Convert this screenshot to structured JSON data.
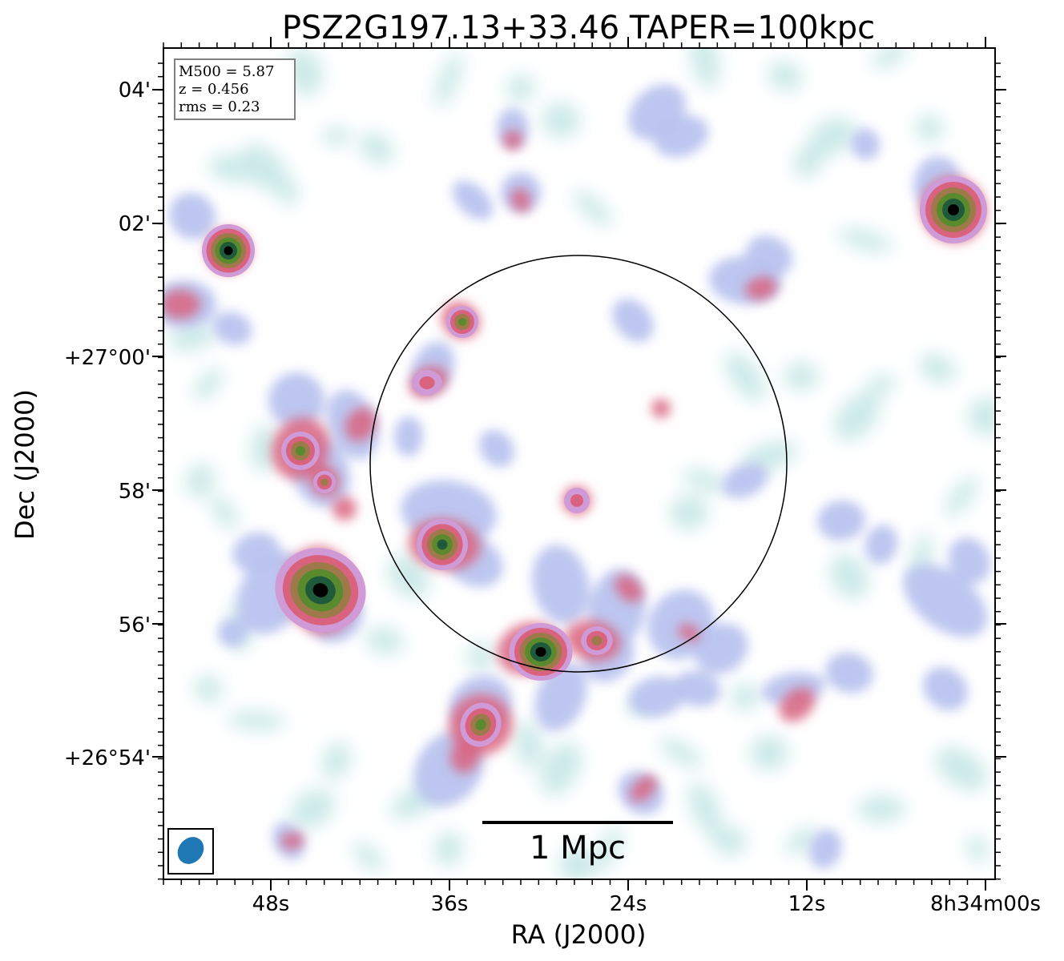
{
  "title": "PSZ2G197.13+33.46 TAPER=100kpc",
  "axes": {
    "xlabel": "RA (J2000)",
    "ylabel": "Dec (J2000)",
    "x_ticks": [
      "48s",
      "36s",
      "24s",
      "12s",
      "8h34m00s"
    ],
    "y_ticks": [
      "04'",
      "02'",
      "+27°00'",
      "58'",
      "56'",
      "+26°54'"
    ]
  },
  "info_box": {
    "lines": [
      "M500 = 5.87",
      "z = 0.456",
      "rms = 0.23"
    ]
  },
  "scale_bar": {
    "label": "1 Mpc"
  },
  "colors": {
    "colormap": [
      "#ffffff",
      "#c6e8e6",
      "#b9c3ef",
      "#cf9ad6",
      "#d9637f",
      "#9e7a4a",
      "#5a8a2e",
      "#1f5a3a",
      "#000000"
    ],
    "beam": "#1f77b4",
    "circle": "#000000"
  },
  "annotations": {
    "beam_ellipse": "beam-ellipse",
    "aperture_circle": "r500-circle"
  }
}
